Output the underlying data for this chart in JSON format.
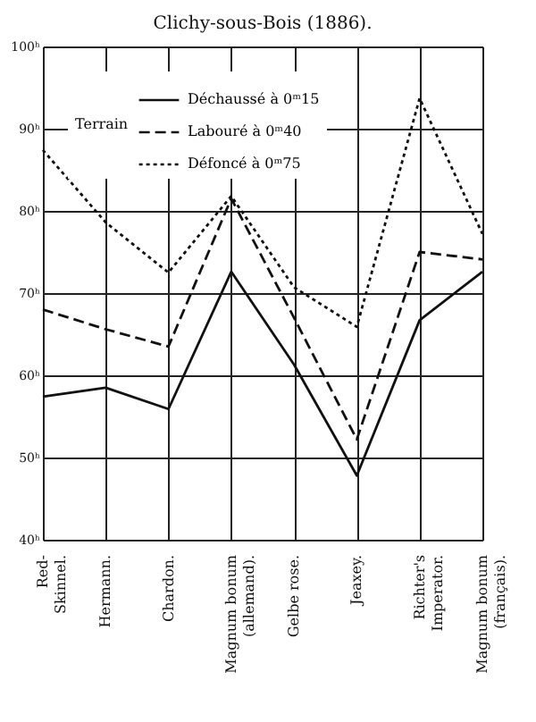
{
  "chart_data": {
    "type": "line",
    "title": "Clichy-sous-Bois (1886).",
    "categories": [
      "Red-\nSkinnel.",
      "Hermann.",
      "Chardon.",
      "Magnum bonum\n(allemand).",
      "Gelbe rose.",
      "Jeaxey.",
      "Richter's\nImperator.",
      "Magnum bonum\n(français)."
    ],
    "legend_title": "Terrain",
    "series": [
      {
        "name": "Déchaussé à 0ᵐ15",
        "color": "#111111",
        "line_style": "solid",
        "values": [
          57.4,
          58.5,
          55.9,
          72.6,
          61.3,
          47.8,
          66.7,
          72.6
        ]
      },
      {
        "name": "Labouré à 0ᵐ40",
        "color": "#111111",
        "line_style": "dashed",
        "values": [
          68.0,
          65.6,
          63.5,
          81.5,
          67.0,
          52.2,
          75.0,
          74.1
        ]
      },
      {
        "name": "Défoncé à 0ᵐ75",
        "color": "#111111",
        "line_style": "dotted",
        "values": [
          87.4,
          78.6,
          72.5,
          81.8,
          70.7,
          65.9,
          93.7,
          77.2
        ]
      }
    ],
    "ylim": [
      40,
      100
    ],
    "yticks": [
      {
        "value": 40,
        "label": "40ʰ"
      },
      {
        "value": 50,
        "label": "50ʰ"
      },
      {
        "value": 60,
        "label": "60ʰ"
      },
      {
        "value": 70,
        "label": "70ʰ"
      },
      {
        "value": 80,
        "label": "80ʰ"
      },
      {
        "value": 90,
        "label": "90ʰ"
      },
      {
        "value": 100,
        "label": "100ʰ"
      }
    ],
    "grid": true,
    "legend": "top left",
    "marker": "none"
  }
}
